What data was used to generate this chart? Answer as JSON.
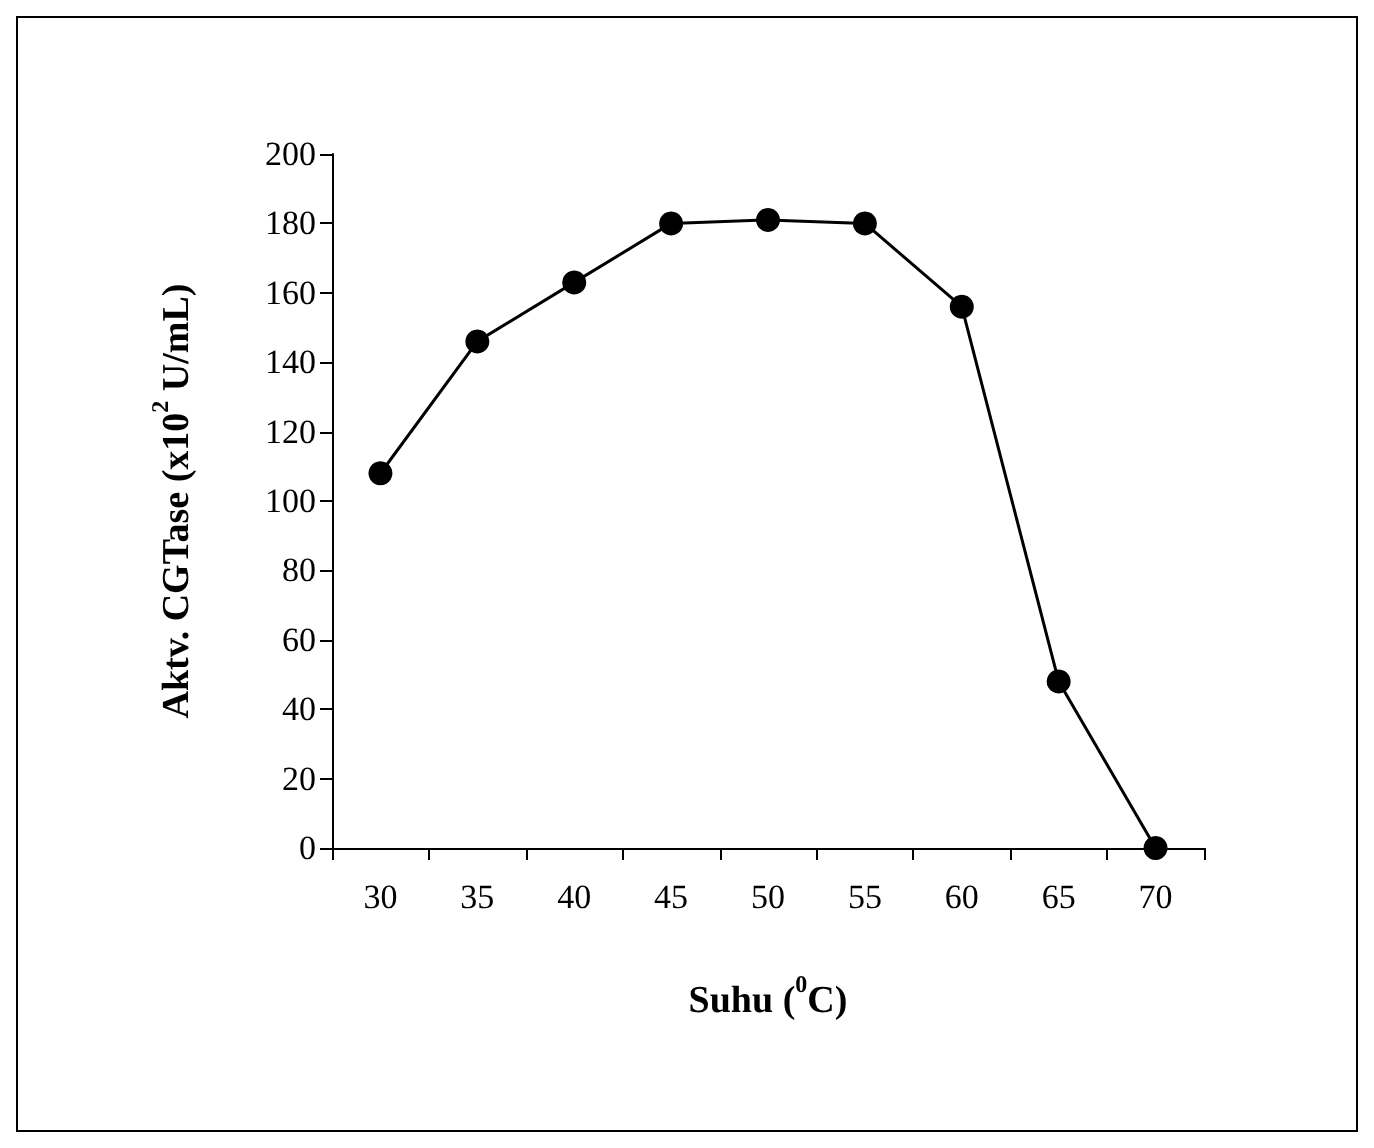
{
  "chart_data": {
    "type": "line",
    "xlabel": "Suhu ($^{0}$C)",
    "ylabel": "Aktv. CGTase (x10$^{2}$ U/mL)",
    "categories": [
      "30",
      "35",
      "40",
      "45",
      "50",
      "55",
      "60",
      "65",
      "70"
    ],
    "series": [
      {
        "color": "#000000",
        "values": [
          108,
          146,
          163,
          180,
          181,
          180,
          156,
          48,
          0
        ]
      }
    ],
    "ylim": [
      0,
      200
    ],
    "yticks": [
      0,
      20,
      40,
      60,
      80,
      100,
      120,
      140,
      160,
      180,
      200
    ],
    "grid": false,
    "marker": "circle",
    "line_style": "solid"
  }
}
